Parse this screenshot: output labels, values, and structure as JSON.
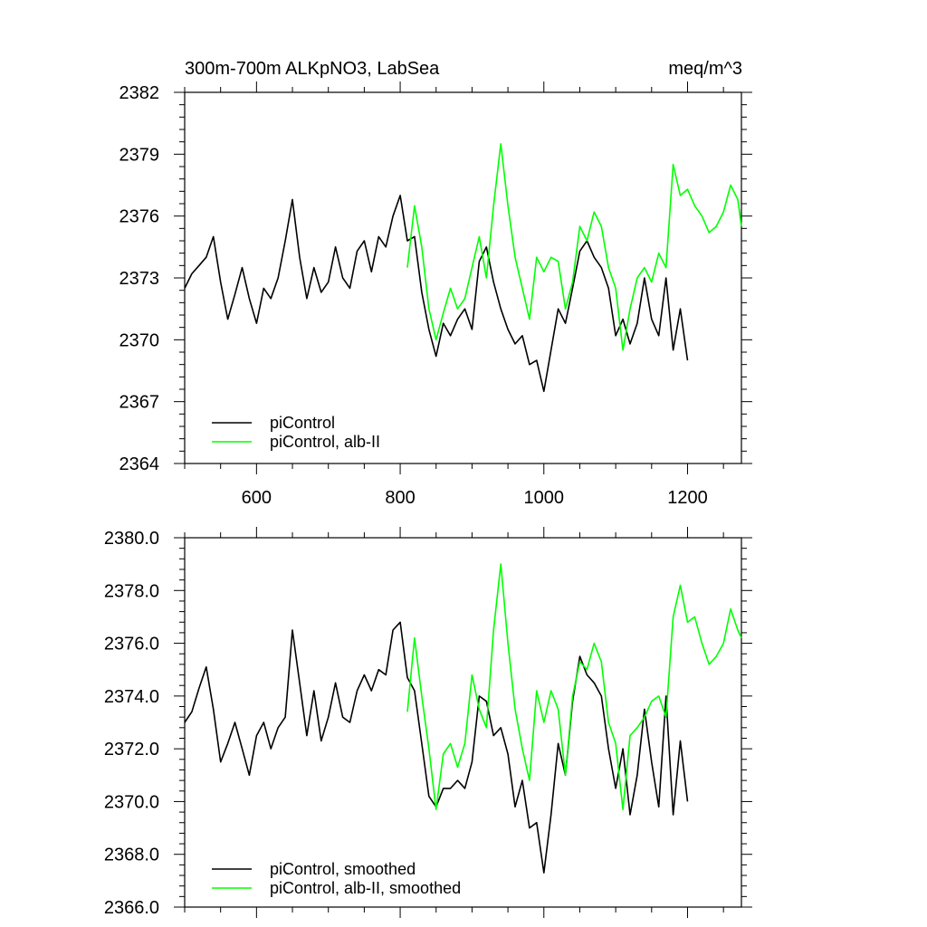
{
  "chart_data": [
    {
      "type": "line",
      "title": "300m-700m ALKpNO3, LabSea",
      "units": "meq/m^3",
      "xlim": [
        500,
        1275
      ],
      "ylim": [
        2364,
        2382
      ],
      "xticks": [
        600,
        800,
        1000,
        1200
      ],
      "xtick_labels": [
        "600",
        "800",
        "1000",
        "1200"
      ],
      "yticks": [
        2364,
        2367,
        2370,
        2373,
        2376,
        2379,
        2382
      ],
      "ytick_labels": [
        "2364",
        "2367",
        "2370",
        "2373",
        "2376",
        "2379",
        "2382"
      ],
      "legend": [
        "piControl",
        "piControl, alb-II"
      ],
      "series": [
        {
          "name": "piControl",
          "color": "#000000",
          "x": [
            500,
            510,
            520,
            530,
            540,
            550,
            560,
            570,
            580,
            590,
            600,
            610,
            620,
            630,
            640,
            650,
            660,
            670,
            680,
            690,
            700,
            710,
            720,
            730,
            740,
            750,
            760,
            770,
            780,
            790,
            800,
            810,
            820,
            830,
            840,
            850,
            860,
            870,
            880,
            890,
            900,
            910,
            920,
            930,
            940,
            950,
            960,
            970,
            980,
            990,
            1000,
            1010,
            1020,
            1030,
            1040,
            1050,
            1060,
            1070,
            1080,
            1090,
            1100,
            1110,
            1120,
            1130,
            1140,
            1150,
            1160,
            1170,
            1180,
            1190,
            1200
          ],
          "values": [
            2372.5,
            2373.2,
            2373.6,
            2374.0,
            2375.0,
            2372.8,
            2371.0,
            2372.2,
            2373.5,
            2372.0,
            2370.8,
            2372.5,
            2372.0,
            2373.0,
            2374.8,
            2376.8,
            2374.0,
            2372.0,
            2373.5,
            2372.3,
            2372.8,
            2374.5,
            2373.0,
            2372.5,
            2374.3,
            2374.8,
            2373.3,
            2375.0,
            2374.5,
            2376.0,
            2377.0,
            2374.8,
            2375.0,
            2372.3,
            2370.5,
            2369.2,
            2370.8,
            2370.2,
            2371.0,
            2371.5,
            2370.5,
            2373.8,
            2374.5,
            2372.8,
            2371.5,
            2370.5,
            2369.8,
            2370.2,
            2368.8,
            2369.0,
            2367.5,
            2369.5,
            2371.5,
            2370.8,
            2372.5,
            2374.3,
            2374.8,
            2374.0,
            2373.5,
            2372.5,
            2370.2,
            2371.0,
            2369.8,
            2370.8,
            2373.0,
            2371.0,
            2370.2,
            2373.0,
            2369.5,
            2371.5,
            2369.0
          ]
        },
        {
          "name": "piControl, alb-II",
          "color": "#00ff00",
          "x": [
            810,
            820,
            830,
            840,
            850,
            860,
            870,
            880,
            890,
            900,
            910,
            920,
            930,
            940,
            950,
            960,
            970,
            980,
            990,
            1000,
            1010,
            1020,
            1030,
            1040,
            1050,
            1060,
            1070,
            1080,
            1090,
            1100,
            1110,
            1120,
            1130,
            1140,
            1150,
            1160,
            1170,
            1180,
            1190,
            1200,
            1210,
            1220,
            1230,
            1240,
            1250,
            1260,
            1270,
            1275
          ],
          "values": [
            2373.5,
            2376.5,
            2374.5,
            2371.5,
            2370.0,
            2371.3,
            2372.5,
            2371.5,
            2372.0,
            2373.5,
            2375.0,
            2373.0,
            2376.5,
            2379.5,
            2376.5,
            2374.0,
            2372.5,
            2371.0,
            2374.0,
            2373.3,
            2374.0,
            2373.8,
            2371.5,
            2372.8,
            2375.5,
            2374.8,
            2376.2,
            2375.5,
            2373.5,
            2372.5,
            2369.5,
            2371.5,
            2373.0,
            2373.5,
            2372.8,
            2374.2,
            2373.5,
            2378.5,
            2377.0,
            2377.3,
            2376.5,
            2376.0,
            2375.2,
            2375.5,
            2376.2,
            2377.5,
            2376.8,
            2375.5
          ]
        }
      ]
    },
    {
      "type": "line",
      "title": "",
      "xlim": [
        500,
        1275
      ],
      "ylim": [
        2366.0,
        2380.0
      ],
      "xticks": [
        600,
        800,
        1000,
        1200
      ],
      "xtick_labels": [],
      "yticks": [
        2366.0,
        2368.0,
        2370.0,
        2372.0,
        2374.0,
        2376.0,
        2378.0,
        2380.0
      ],
      "ytick_labels": [
        "2366.0",
        "2368.0",
        "2370.0",
        "2372.0",
        "2374.0",
        "2376.0",
        "2378.0",
        "2380.0"
      ],
      "legend": [
        "piControl, smoothed",
        "piControl, alb-II, smoothed"
      ],
      "series": [
        {
          "name": "piControl, smoothed",
          "color": "#000000",
          "x": [
            500,
            510,
            520,
            530,
            540,
            550,
            560,
            570,
            580,
            590,
            600,
            610,
            620,
            630,
            640,
            650,
            660,
            670,
            680,
            690,
            700,
            710,
            720,
            730,
            740,
            750,
            760,
            770,
            780,
            790,
            800,
            810,
            820,
            830,
            840,
            850,
            860,
            870,
            880,
            890,
            900,
            910,
            920,
            930,
            940,
            950,
            960,
            970,
            980,
            990,
            1000,
            1010,
            1020,
            1030,
            1040,
            1050,
            1060,
            1070,
            1080,
            1090,
            1100,
            1110,
            1120,
            1130,
            1140,
            1150,
            1160,
            1170,
            1180,
            1190,
            1200
          ],
          "values": [
            2373.0,
            2373.4,
            2374.3,
            2375.1,
            2373.5,
            2371.5,
            2372.2,
            2373.0,
            2372.0,
            2371.0,
            2372.5,
            2373.0,
            2372.0,
            2372.8,
            2373.2,
            2376.5,
            2374.5,
            2372.5,
            2374.2,
            2372.3,
            2373.2,
            2374.5,
            2373.2,
            2373.0,
            2374.2,
            2374.8,
            2374.2,
            2375.0,
            2374.8,
            2376.5,
            2376.8,
            2374.7,
            2374.2,
            2372.2,
            2370.2,
            2369.8,
            2370.5,
            2370.5,
            2370.8,
            2370.5,
            2371.5,
            2374.0,
            2373.8,
            2372.5,
            2372.8,
            2371.8,
            2369.8,
            2370.8,
            2369.0,
            2369.2,
            2367.3,
            2369.5,
            2372.2,
            2371.0,
            2373.8,
            2375.5,
            2374.8,
            2374.5,
            2374.0,
            2372.0,
            2370.5,
            2372.0,
            2369.5,
            2371.0,
            2373.5,
            2371.5,
            2369.8,
            2374.0,
            2369.5,
            2372.3,
            2370.0
          ]
        },
        {
          "name": "piControl, alb-II, smoothed",
          "color": "#00ff00",
          "x": [
            810,
            820,
            830,
            840,
            850,
            860,
            870,
            880,
            890,
            900,
            910,
            920,
            930,
            940,
            950,
            960,
            970,
            980,
            990,
            1000,
            1010,
            1020,
            1030,
            1040,
            1050,
            1060,
            1070,
            1080,
            1090,
            1100,
            1110,
            1120,
            1130,
            1140,
            1150,
            1160,
            1170,
            1180,
            1190,
            1200,
            1210,
            1220,
            1230,
            1240,
            1250,
            1260,
            1270,
            1275
          ],
          "values": [
            2373.4,
            2376.2,
            2374.0,
            2372.0,
            2369.7,
            2371.8,
            2372.2,
            2371.3,
            2372.2,
            2374.8,
            2373.5,
            2372.8,
            2376.5,
            2379.0,
            2376.0,
            2373.5,
            2372.0,
            2370.8,
            2374.2,
            2373.0,
            2374.2,
            2373.5,
            2371.0,
            2374.0,
            2375.3,
            2375.0,
            2376.0,
            2375.3,
            2373.0,
            2372.2,
            2369.7,
            2372.5,
            2372.8,
            2373.2,
            2373.8,
            2374.0,
            2373.2,
            2377.0,
            2378.2,
            2376.8,
            2377.0,
            2376.0,
            2375.2,
            2375.5,
            2376.0,
            2377.3,
            2376.5,
            2376.2
          ]
        }
      ]
    }
  ]
}
